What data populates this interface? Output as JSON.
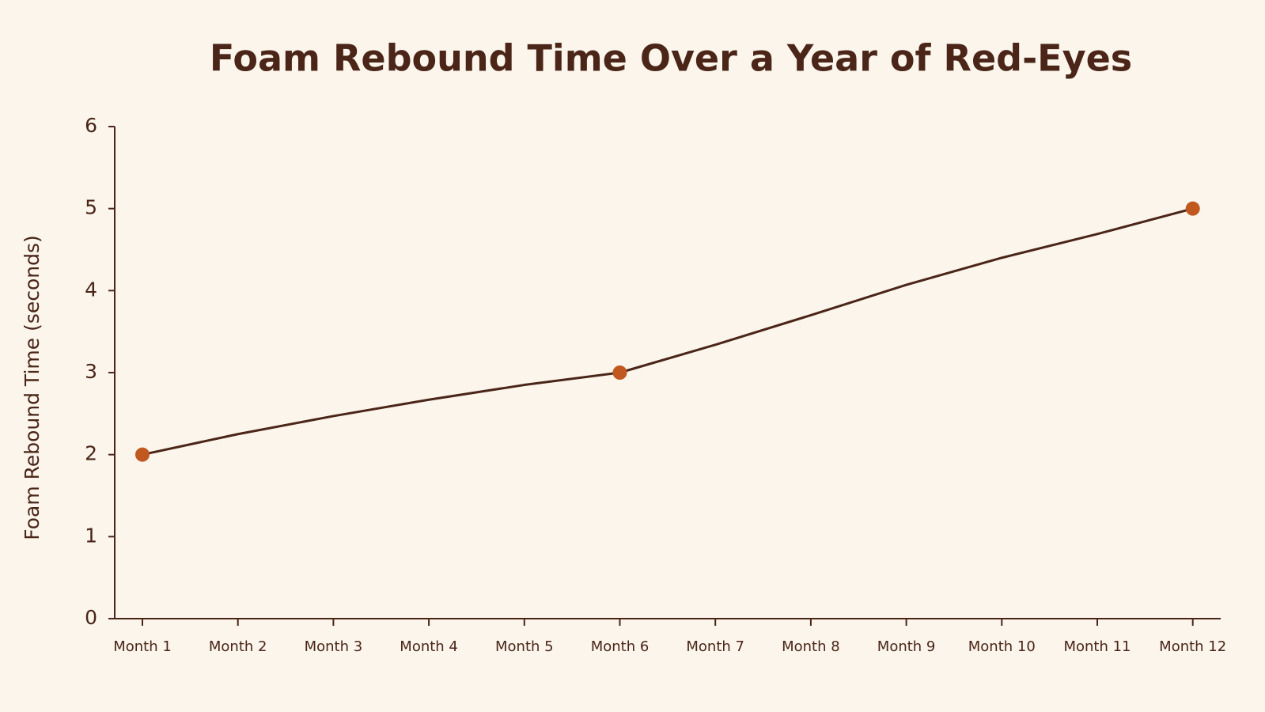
{
  "chart_data": {
    "type": "line",
    "title": "Foam Rebound Time Over a Year of Red-Eyes",
    "y_label": "Foam Rebound Time (seconds)",
    "categories": [
      "Month 1",
      "Month 2",
      "Month 3",
      "Month 4",
      "Month 5",
      "Month 6",
      "Month 7",
      "Month 8",
      "Month 9",
      "Month 10",
      "Month 11",
      "Month 12"
    ],
    "series": [
      {
        "name": "Foam Rebound Time",
        "color": "#4a2518",
        "marker_color": "#c0581f",
        "values": [
          2,
          2.25,
          2.47,
          2.67,
          2.85,
          3,
          3.34,
          3.7,
          4.07,
          4.4,
          4.69,
          5
        ],
        "markers_at": [
          0,
          5,
          11
        ]
      }
    ],
    "ylim": [
      0,
      6
    ],
    "yticks": [
      0,
      1,
      2,
      3,
      4,
      5,
      6
    ],
    "grid": false
  }
}
